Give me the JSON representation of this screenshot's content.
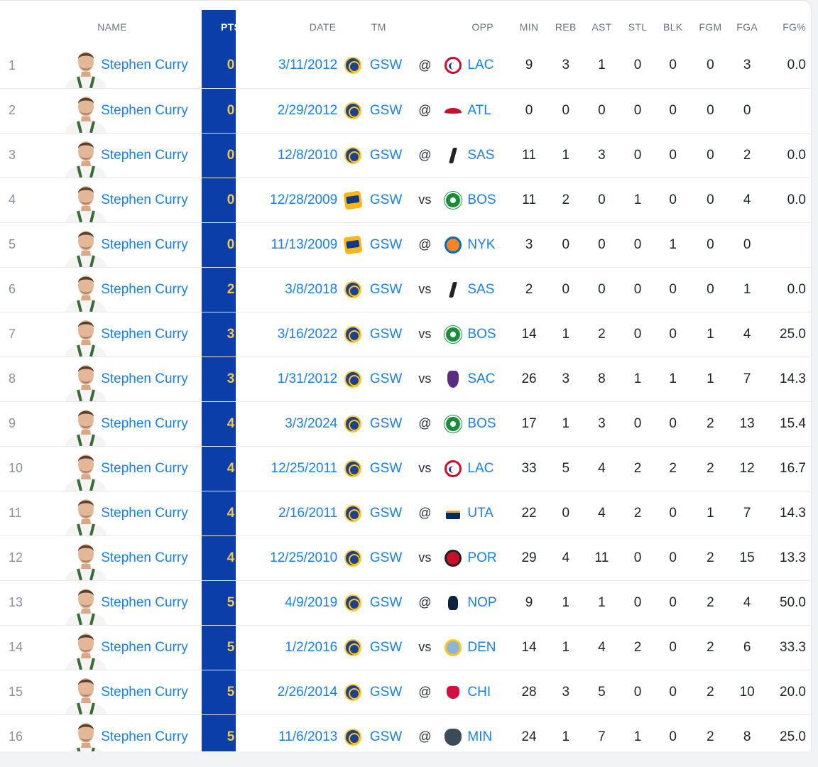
{
  "columns": {
    "name": "NAME",
    "pts": "PTS",
    "date": "DATE",
    "tm": "TM",
    "opp": "OPP",
    "min": "MIN",
    "reb": "REB",
    "ast": "AST",
    "stl": "STL",
    "blk": "BLK",
    "fgm": "FGM",
    "fga": "FGA",
    "fgp": "FG%"
  },
  "colors": {
    "pts_band": "#0b3ea8",
    "pts_text": "#f2c84b",
    "link": "#1a7fe8"
  },
  "rows": [
    {
      "rank": "1",
      "name": "Stephen Curry",
      "pts": "0",
      "date": "3/11/2012",
      "tm": "GSW",
      "tm_logo": "gsw",
      "ha": "@",
      "opp": "LAC",
      "opp_logo": "lac",
      "min": "9",
      "reb": "3",
      "ast": "1",
      "stl": "0",
      "blk": "0",
      "fgm": "0",
      "fga": "3",
      "fgp": "0.0"
    },
    {
      "rank": "2",
      "name": "Stephen Curry",
      "pts": "0",
      "date": "2/29/2012",
      "tm": "GSW",
      "tm_logo": "gsw",
      "ha": "@",
      "opp": "ATL",
      "opp_logo": "atl",
      "min": "0",
      "reb": "0",
      "ast": "0",
      "stl": "0",
      "blk": "0",
      "fgm": "0",
      "fga": "0",
      "fgp": ""
    },
    {
      "rank": "3",
      "name": "Stephen Curry",
      "pts": "0",
      "date": "12/8/2010",
      "tm": "GSW",
      "tm_logo": "gsw",
      "ha": "@",
      "opp": "SAS",
      "opp_logo": "sas",
      "min": "11",
      "reb": "1",
      "ast": "3",
      "stl": "0",
      "blk": "0",
      "fgm": "0",
      "fga": "2",
      "fgp": "0.0"
    },
    {
      "rank": "4",
      "name": "Stephen Curry",
      "pts": "0",
      "date": "12/28/2009",
      "tm": "GSW",
      "tm_logo": "gsw-old",
      "ha": "vs",
      "opp": "BOS",
      "opp_logo": "bos",
      "min": "11",
      "reb": "2",
      "ast": "0",
      "stl": "1",
      "blk": "0",
      "fgm": "0",
      "fga": "4",
      "fgp": "0.0"
    },
    {
      "rank": "5",
      "name": "Stephen Curry",
      "pts": "0",
      "date": "11/13/2009",
      "tm": "GSW",
      "tm_logo": "gsw-old",
      "ha": "@",
      "opp": "NYK",
      "opp_logo": "nyk",
      "min": "3",
      "reb": "0",
      "ast": "0",
      "stl": "0",
      "blk": "1",
      "fgm": "0",
      "fga": "0",
      "fgp": ""
    },
    {
      "rank": "6",
      "name": "Stephen Curry",
      "pts": "2",
      "date": "3/8/2018",
      "tm": "GSW",
      "tm_logo": "gsw",
      "ha": "vs",
      "opp": "SAS",
      "opp_logo": "sas",
      "min": "2",
      "reb": "0",
      "ast": "0",
      "stl": "0",
      "blk": "0",
      "fgm": "0",
      "fga": "1",
      "fgp": "0.0"
    },
    {
      "rank": "7",
      "name": "Stephen Curry",
      "pts": "3",
      "date": "3/16/2022",
      "tm": "GSW",
      "tm_logo": "gsw",
      "ha": "vs",
      "opp": "BOS",
      "opp_logo": "bos",
      "min": "14",
      "reb": "1",
      "ast": "2",
      "stl": "0",
      "blk": "0",
      "fgm": "1",
      "fga": "4",
      "fgp": "25.0"
    },
    {
      "rank": "8",
      "name": "Stephen Curry",
      "pts": "3",
      "date": "1/31/2012",
      "tm": "GSW",
      "tm_logo": "gsw",
      "ha": "vs",
      "opp": "SAC",
      "opp_logo": "sac",
      "min": "26",
      "reb": "3",
      "ast": "8",
      "stl": "1",
      "blk": "1",
      "fgm": "1",
      "fga": "7",
      "fgp": "14.3"
    },
    {
      "rank": "9",
      "name": "Stephen Curry",
      "pts": "4",
      "date": "3/3/2024",
      "tm": "GSW",
      "tm_logo": "gsw",
      "ha": "@",
      "opp": "BOS",
      "opp_logo": "bos",
      "min": "17",
      "reb": "1",
      "ast": "3",
      "stl": "0",
      "blk": "0",
      "fgm": "2",
      "fga": "13",
      "fgp": "15.4"
    },
    {
      "rank": "10",
      "name": "Stephen Curry",
      "pts": "4",
      "date": "12/25/2011",
      "tm": "GSW",
      "tm_logo": "gsw",
      "ha": "vs",
      "opp": "LAC",
      "opp_logo": "lac",
      "min": "33",
      "reb": "5",
      "ast": "4",
      "stl": "2",
      "blk": "2",
      "fgm": "2",
      "fga": "12",
      "fgp": "16.7"
    },
    {
      "rank": "11",
      "name": "Stephen Curry",
      "pts": "4",
      "date": "2/16/2011",
      "tm": "GSW",
      "tm_logo": "gsw",
      "ha": "@",
      "opp": "UTA",
      "opp_logo": "uta",
      "min": "22",
      "reb": "0",
      "ast": "4",
      "stl": "2",
      "blk": "0",
      "fgm": "1",
      "fga": "7",
      "fgp": "14.3"
    },
    {
      "rank": "12",
      "name": "Stephen Curry",
      "pts": "4",
      "date": "12/25/2010",
      "tm": "GSW",
      "tm_logo": "gsw",
      "ha": "vs",
      "opp": "POR",
      "opp_logo": "por",
      "min": "29",
      "reb": "4",
      "ast": "11",
      "stl": "0",
      "blk": "0",
      "fgm": "2",
      "fga": "15",
      "fgp": "13.3"
    },
    {
      "rank": "13",
      "name": "Stephen Curry",
      "pts": "5",
      "date": "4/9/2019",
      "tm": "GSW",
      "tm_logo": "gsw",
      "ha": "@",
      "opp": "NOP",
      "opp_logo": "nop",
      "min": "9",
      "reb": "1",
      "ast": "1",
      "stl": "0",
      "blk": "0",
      "fgm": "2",
      "fga": "4",
      "fgp": "50.0"
    },
    {
      "rank": "14",
      "name": "Stephen Curry",
      "pts": "5",
      "date": "1/2/2016",
      "tm": "GSW",
      "tm_logo": "gsw",
      "ha": "vs",
      "opp": "DEN",
      "opp_logo": "den",
      "min": "14",
      "reb": "1",
      "ast": "4",
      "stl": "2",
      "blk": "0",
      "fgm": "2",
      "fga": "6",
      "fgp": "33.3"
    },
    {
      "rank": "15",
      "name": "Stephen Curry",
      "pts": "5",
      "date": "2/26/2014",
      "tm": "GSW",
      "tm_logo": "gsw",
      "ha": "@",
      "opp": "CHI",
      "opp_logo": "chi",
      "min": "28",
      "reb": "3",
      "ast": "5",
      "stl": "0",
      "blk": "0",
      "fgm": "2",
      "fga": "10",
      "fgp": "20.0"
    },
    {
      "rank": "16",
      "name": "Stephen Curry",
      "pts": "5",
      "date": "11/6/2013",
      "tm": "GSW",
      "tm_logo": "gsw",
      "ha": "@",
      "opp": "MIN",
      "opp_logo": "min",
      "min": "24",
      "reb": "1",
      "ast": "7",
      "stl": "1",
      "blk": "0",
      "fgm": "2",
      "fga": "8",
      "fgp": "25.0"
    }
  ]
}
